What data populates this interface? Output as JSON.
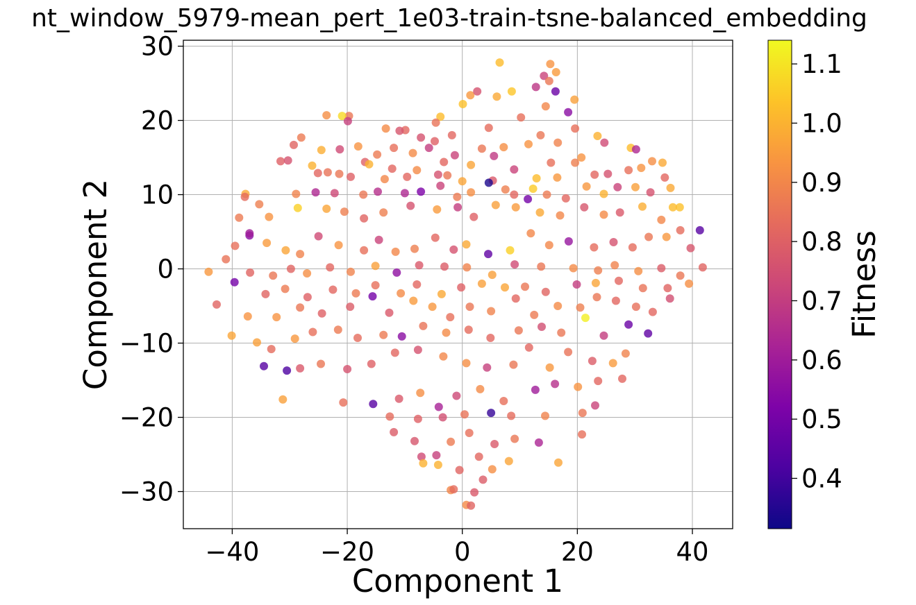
{
  "chart_data": {
    "type": "scatter",
    "title": "nt_window_5979-mean_pert_1e03-train-tsne-balanced_embedding",
    "xlabel": "Component 1",
    "ylabel": "Component 2",
    "xlim": [
      -48.5,
      47
    ],
    "ylim": [
      -35,
      30.8
    ],
    "xticks": [
      -40,
      -20,
      0,
      20,
      40
    ],
    "xtick_labels": [
      "−40",
      "−20",
      "0",
      "20",
      "40"
    ],
    "yticks": [
      -30,
      -20,
      -10,
      0,
      10,
      20,
      30
    ],
    "ytick_labels": [
      "−30",
      "−20",
      "−10",
      "0",
      "10",
      "20",
      "30"
    ],
    "grid": true,
    "colormap": "plasma",
    "marker_alpha": 0.8,
    "colorbar": {
      "label": "Fitness",
      "range": [
        0.315,
        1.14
      ],
      "ticks": [
        0.4,
        0.5,
        0.6,
        0.7,
        0.8,
        0.9,
        1.0,
        1.1
      ],
      "tick_labels": [
        "0.4",
        "0.5",
        "0.6",
        "0.7",
        "0.8",
        "0.9",
        "1.0",
        "1.1"
      ]
    },
    "points": [
      [
        6.5,
        27.8,
        1.02
      ],
      [
        15.3,
        27.6,
        0.93
      ],
      [
        16.3,
        26.5,
        0.95
      ],
      [
        14.2,
        26.0,
        0.72
      ],
      [
        12.8,
        24.5,
        0.68
      ],
      [
        16.2,
        23.9,
        0.48
      ],
      [
        1.4,
        23.4,
        0.94
      ],
      [
        2.6,
        23.9,
        0.76
      ],
      [
        6.0,
        23.2,
        0.98
      ],
      [
        8.6,
        23.9,
        1.04
      ],
      [
        15.1,
        25.3,
        0.86
      ],
      [
        19.5,
        22.8,
        0.96
      ],
      [
        -19.7,
        20.6,
        0.86
      ],
      [
        -20.9,
        20.6,
        1.08
      ],
      [
        -23.6,
        20.7,
        0.92
      ],
      [
        -19.9,
        19.9,
        0.71
      ],
      [
        -3.8,
        20.5,
        1.02
      ],
      [
        -4.6,
        19.7,
        0.85
      ],
      [
        -1.8,
        18.0,
        0.82
      ],
      [
        0.1,
        22.2,
        1.03
      ],
      [
        4.6,
        19.0,
        0.83
      ],
      [
        10.2,
        20.4,
        0.84
      ],
      [
        14.5,
        21.9,
        0.9
      ],
      [
        18.4,
        21.1,
        0.55
      ],
      [
        19.6,
        18.9,
        0.84
      ],
      [
        -13.3,
        18.9,
        0.91
      ],
      [
        -9.9,
        18.7,
        0.82
      ],
      [
        -7.2,
        17.7,
        0.76
      ],
      [
        -4.8,
        17.2,
        0.8
      ],
      [
        -28.0,
        17.7,
        0.87
      ],
      [
        -29.3,
        16.7,
        0.81
      ],
      [
        -24.5,
        16.0,
        0.99
      ],
      [
        -21.3,
        16.1,
        0.74
      ],
      [
        -18.1,
        16.5,
        0.93
      ],
      [
        -16.9,
        14.4,
        0.8
      ],
      [
        -14.8,
        15.4,
        0.87
      ],
      [
        -11.9,
        16.3,
        0.84
      ],
      [
        -10.9,
        18.6,
        0.77
      ],
      [
        -8.6,
        15.6,
        0.91
      ],
      [
        -5.8,
        16.3,
        0.7
      ],
      [
        -3.2,
        14.4,
        0.82
      ],
      [
        -1.3,
        15.3,
        0.72
      ],
      [
        1.5,
        14.0,
        0.97
      ],
      [
        3.4,
        16.2,
        0.86
      ],
      [
        5.5,
        15.2,
        0.69
      ],
      [
        7.2,
        16.4,
        0.92
      ],
      [
        11.5,
        16.8,
        0.93
      ],
      [
        13.6,
        18.0,
        0.86
      ],
      [
        16.6,
        17.0,
        0.89
      ],
      [
        20.7,
        15.0,
        0.93
      ],
      [
        23.5,
        17.9,
        1.0
      ],
      [
        24.7,
        17.0,
        0.74
      ],
      [
        29.3,
        16.3,
        1.02
      ],
      [
        30.2,
        16.1,
        0.64
      ],
      [
        -31.6,
        14.5,
        0.8
      ],
      [
        -30.3,
        14.6,
        0.76
      ],
      [
        -26.1,
        13.9,
        1.0
      ],
      [
        -25.1,
        12.9,
        0.82
      ],
      [
        -23.4,
        13.0,
        0.85
      ],
      [
        -21.4,
        12.8,
        0.86
      ],
      [
        -19.4,
        12.4,
        0.8
      ],
      [
        -16.2,
        14.1,
        1.0
      ],
      [
        -13.5,
        12.1,
        0.9
      ],
      [
        -12.2,
        13.5,
        0.82
      ],
      [
        -9.6,
        12.4,
        0.82
      ],
      [
        -7.9,
        13.3,
        0.91
      ],
      [
        -4.2,
        12.7,
        0.76
      ],
      [
        -2.6,
        12.6,
        0.86
      ],
      [
        0.0,
        11.8,
        0.97
      ],
      [
        5.3,
        11.9,
        0.78
      ],
      [
        9.0,
        13.4,
        0.72
      ],
      [
        12.9,
        12.2,
        1.02
      ],
      [
        15.4,
        14.3,
        0.84
      ],
      [
        16.5,
        12.3,
        0.94
      ],
      [
        19.6,
        14.3,
        0.88
      ],
      [
        23.0,
        12.7,
        0.82
      ],
      [
        25.3,
        12.8,
        0.76
      ],
      [
        28.9,
        13.3,
        0.84
      ],
      [
        31.1,
        13.6,
        0.93
      ],
      [
        33.0,
        14.5,
        0.92
      ],
      [
        34.8,
        14.3,
        0.98
      ],
      [
        35.2,
        12.3,
        0.82
      ],
      [
        -37.7,
        10.1,
        0.98
      ],
      [
        -35.3,
        8.7,
        0.88
      ],
      [
        -28.9,
        10.1,
        0.89
      ],
      [
        -25.5,
        10.3,
        0.64
      ],
      [
        -22.2,
        10.2,
        0.73
      ],
      [
        -17.2,
        10.0,
        0.86
      ],
      [
        -14.7,
        10.4,
        0.66
      ],
      [
        -10.0,
        10.2,
        0.64
      ],
      [
        -7.2,
        10.4,
        0.52
      ],
      [
        -3.8,
        11.2,
        0.72
      ],
      [
        -0.9,
        9.7,
        0.87
      ],
      [
        1.5,
        10.3,
        0.92
      ],
      [
        4.6,
        11.6,
        0.34
      ],
      [
        7.5,
        10.7,
        0.88
      ],
      [
        9.0,
        10.0,
        0.82
      ],
      [
        12.3,
        10.8,
        1.05
      ],
      [
        14.7,
        10.0,
        0.87
      ],
      [
        18.0,
        9.5,
        0.82
      ],
      [
        21.6,
        11.1,
        0.94
      ],
      [
        24.6,
        10.1,
        1.0
      ],
      [
        27.0,
        11.0,
        0.72
      ],
      [
        30.1,
        11.0,
        0.96
      ],
      [
        32.7,
        10.3,
        0.76
      ],
      [
        36.2,
        10.9,
        0.98
      ],
      [
        -38.8,
        6.9,
        0.87
      ],
      [
        -33.6,
        7.0,
        0.93
      ],
      [
        -28.6,
        8.2,
        1.06
      ],
      [
        -23.6,
        8.1,
        0.97
      ],
      [
        -20.5,
        7.7,
        0.88
      ],
      [
        -17.1,
        6.8,
        0.81
      ],
      [
        -13.7,
        7.6,
        0.88
      ],
      [
        -9.0,
        8.5,
        0.76
      ],
      [
        -4.4,
        8.0,
        0.95
      ],
      [
        -0.8,
        8.3,
        0.7
      ],
      [
        2.0,
        7.0,
        0.8
      ],
      [
        5.8,
        8.6,
        0.96
      ],
      [
        9.3,
        8.3,
        0.95
      ],
      [
        11.4,
        9.4,
        0.5
      ],
      [
        13.5,
        7.6,
        0.98
      ],
      [
        17.0,
        7.2,
        0.9
      ],
      [
        21.2,
        8.3,
        0.77
      ],
      [
        24.6,
        7.3,
        0.91
      ],
      [
        27.4,
        7.6,
        0.78
      ],
      [
        31.3,
        8.4,
        0.99
      ],
      [
        34.6,
        6.6,
        0.9
      ],
      [
        37.8,
        8.3,
        1.03
      ],
      [
        -37.0,
        4.5,
        0.55
      ],
      [
        -34.0,
        3.5,
        0.95
      ],
      [
        -30.7,
        2.5,
        0.97
      ],
      [
        -28.2,
        2.0,
        0.89
      ],
      [
        -25.0,
        4.4,
        0.74
      ],
      [
        -21.5,
        3.2,
        0.93
      ],
      [
        -17.1,
        2.5,
        0.84
      ],
      [
        -14.5,
        3.9,
        0.72
      ],
      [
        -11.6,
        2.3,
        0.9
      ],
      [
        -8.3,
        2.7,
        0.88
      ],
      [
        -4.7,
        4.2,
        0.82
      ],
      [
        -1.5,
        2.6,
        0.76
      ],
      [
        0.7,
        3.3,
        0.98
      ],
      [
        4.5,
        2.0,
        0.46
      ],
      [
        8.3,
        2.5,
        1.06
      ],
      [
        11.9,
        4.8,
        0.9
      ],
      [
        15.1,
        3.2,
        0.9
      ],
      [
        18.5,
        3.7,
        0.58
      ],
      [
        22.9,
        2.9,
        0.83
      ],
      [
        26.3,
        3.6,
        0.76
      ],
      [
        29.6,
        2.9,
        0.83
      ],
      [
        32.4,
        4.3,
        0.86
      ],
      [
        35.5,
        4.3,
        0.94
      ],
      [
        39.7,
        2.8,
        0.77
      ],
      [
        41.3,
        5.2,
        0.44
      ],
      [
        -41.1,
        1.3,
        0.85
      ],
      [
        -36.9,
        -0.5,
        0.81
      ],
      [
        -32.9,
        -0.9,
        0.86
      ],
      [
        -29.8,
        0.0,
        0.81
      ],
      [
        -27.0,
        -0.6,
        0.92
      ],
      [
        -23.0,
        0.2,
        0.82
      ],
      [
        -19.4,
        -0.4,
        0.89
      ],
      [
        -15.1,
        0.4,
        0.96
      ],
      [
        -11.4,
        -0.5,
        0.56
      ],
      [
        -7.5,
        0.5,
        0.78
      ],
      [
        -3.1,
        0.3,
        0.79
      ],
      [
        0.8,
        0.2,
        0.89
      ],
      [
        5.2,
        -0.8,
        0.96
      ],
      [
        9.1,
        0.6,
        0.74
      ],
      [
        13.7,
        0.3,
        0.86
      ],
      [
        19.3,
        0.1,
        0.91
      ],
      [
        23.6,
        -0.2,
        0.88
      ],
      [
        26.5,
        0.5,
        0.89
      ],
      [
        30.6,
        -0.3,
        0.92
      ],
      [
        34.6,
        0.1,
        0.79
      ],
      [
        37.9,
        -0.9,
        0.86
      ],
      [
        41.8,
        0.2,
        0.81
      ],
      [
        -44.1,
        -0.4,
        0.94
      ],
      [
        -39.6,
        -1.8,
        0.5
      ],
      [
        -34.2,
        -3.4,
        0.81
      ],
      [
        -30.8,
        -2.7,
        0.87
      ],
      [
        -26.9,
        -3.8,
        0.8
      ],
      [
        -22.5,
        -2.8,
        0.82
      ],
      [
        -18.5,
        -3.3,
        0.87
      ],
      [
        -15.1,
        -2.2,
        0.84
      ],
      [
        -10.7,
        -3.3,
        0.91
      ],
      [
        -7.9,
        -2.1,
        0.82
      ],
      [
        -3.6,
        -3.4,
        0.98
      ],
      [
        -0.2,
        -2.5,
        0.8
      ],
      [
        3.4,
        -2.0,
        0.96
      ],
      [
        7.4,
        -2.5,
        0.97
      ],
      [
        10.9,
        -2.4,
        0.86
      ],
      [
        14.5,
        -3.1,
        0.81
      ],
      [
        19.9,
        -2.1,
        0.7
      ],
      [
        23.2,
        -1.9,
        0.97
      ],
      [
        27.2,
        -1.6,
        0.82
      ],
      [
        31.4,
        -2.6,
        0.85
      ],
      [
        35.7,
        -2.6,
        0.81
      ],
      [
        39.4,
        -2.0,
        0.92
      ],
      [
        -42.7,
        -4.8,
        0.81
      ],
      [
        -37.3,
        -6.4,
        0.93
      ],
      [
        -32.3,
        -6.5,
        0.93
      ],
      [
        -28.2,
        -5.2,
        0.86
      ],
      [
        -24.4,
        -6.0,
        0.8
      ],
      [
        -19.5,
        -5.1,
        0.79
      ],
      [
        -15.6,
        -3.7,
        0.5
      ],
      [
        -12.7,
        -5.9,
        0.78
      ],
      [
        -8.5,
        -4.3,
        0.95
      ],
      [
        -5.2,
        -5.1,
        0.94
      ],
      [
        -2.1,
        -6.5,
        0.84
      ],
      [
        1.3,
        -5.1,
        0.86
      ],
      [
        5.0,
        -5.7,
        0.89
      ],
      [
        9.3,
        -4.0,
        0.82
      ],
      [
        12.5,
        -6.2,
        0.87
      ],
      [
        16.6,
        -5.0,
        0.91
      ],
      [
        20.5,
        -5.2,
        0.88
      ],
      [
        23.4,
        -3.8,
        0.86
      ],
      [
        26.7,
        -4.3,
        0.82
      ],
      [
        30.2,
        -5.1,
        0.84
      ],
      [
        33.1,
        -5.8,
        0.82
      ],
      [
        36.1,
        -4.0,
        0.75
      ],
      [
        -40.1,
        -9.0,
        0.97
      ],
      [
        -35.7,
        -9.9,
        0.96
      ],
      [
        -33.2,
        -10.8,
        0.83
      ],
      [
        -29.1,
        -9.4,
        0.94
      ],
      [
        -26.0,
        -8.5,
        0.84
      ],
      [
        -21.6,
        -8.2,
        0.87
      ],
      [
        -18.2,
        -9.3,
        0.83
      ],
      [
        -13.7,
        -8.9,
        0.87
      ],
      [
        -10.5,
        -9.1,
        0.55
      ],
      [
        -6.8,
        -7.7,
        0.85
      ],
      [
        -2.8,
        -8.6,
        0.91
      ],
      [
        1.1,
        -8.2,
        0.83
      ],
      [
        4.9,
        -9.3,
        0.82
      ],
      [
        9.8,
        -8.3,
        0.86
      ],
      [
        13.8,
        -7.8,
        0.75
      ],
      [
        17.2,
        -8.6,
        0.86
      ],
      [
        21.4,
        -6.6,
        1.12
      ],
      [
        24.6,
        -9.0,
        0.7
      ],
      [
        28.9,
        -7.5,
        0.48
      ],
      [
        32.3,
        -8.7,
        0.46
      ],
      [
        -34.5,
        -13.1,
        0.44
      ],
      [
        -30.5,
        -13.7,
        0.42
      ],
      [
        -28.2,
        -13.4,
        0.78
      ],
      [
        -24.6,
        -12.8,
        0.86
      ],
      [
        -20.0,
        -13.5,
        0.76
      ],
      [
        -15.8,
        -12.8,
        0.8
      ],
      [
        -11.7,
        -11.3,
        0.82
      ],
      [
        -7.7,
        -10.9,
        0.76
      ],
      [
        -3.3,
        -11.8,
        0.9
      ],
      [
        0.7,
        -12.7,
        0.92
      ],
      [
        4.3,
        -13.3,
        0.71
      ],
      [
        8.9,
        -12.9,
        0.86
      ],
      [
        11.6,
        -10.6,
        0.82
      ],
      [
        15.2,
        -13.3,
        0.94
      ],
      [
        18.4,
        -11.2,
        0.85
      ],
      [
        22.6,
        -12.4,
        0.79
      ],
      [
        26.2,
        -12.7,
        0.95
      ],
      [
        28.4,
        -11.4,
        0.89
      ],
      [
        -31.2,
        -17.6,
        0.96
      ],
      [
        -20.7,
        -18.0,
        0.84
      ],
      [
        -15.5,
        -18.2,
        0.44
      ],
      [
        -11.0,
        -17.5,
        0.78
      ],
      [
        -7.3,
        -16.7,
        0.92
      ],
      [
        -4.1,
        -18.6,
        0.62
      ],
      [
        -1.0,
        -17.1,
        0.73
      ],
      [
        3.1,
        -16.2,
        0.91
      ],
      [
        7.2,
        -17.8,
        0.84
      ],
      [
        12.7,
        -16.3,
        0.6
      ],
      [
        16.1,
        -15.5,
        0.66
      ],
      [
        20.1,
        -15.9,
        0.93
      ],
      [
        23.6,
        -15.1,
        0.82
      ],
      [
        27.8,
        -14.8,
        0.82
      ],
      [
        -12.6,
        -19.9,
        0.83
      ],
      [
        -7.7,
        -20.2,
        0.8
      ],
      [
        -3.4,
        -20.0,
        0.75
      ],
      [
        0.4,
        -19.6,
        0.85
      ],
      [
        5.0,
        -19.4,
        0.38
      ],
      [
        8.5,
        -19.8,
        0.83
      ],
      [
        14.4,
        -19.8,
        0.89
      ],
      [
        20.9,
        -19.4,
        0.86
      ],
      [
        23.1,
        -18.4,
        0.72
      ],
      [
        -11.9,
        -22.0,
        0.79
      ],
      [
        -8.3,
        -23.2,
        0.77
      ],
      [
        -2.0,
        -23.3,
        0.87
      ],
      [
        1.2,
        -22.1,
        0.84
      ],
      [
        5.6,
        -23.6,
        0.78
      ],
      [
        9.1,
        -22.9,
        0.86
      ],
      [
        13.3,
        -23.4,
        0.63
      ],
      [
        20.8,
        -22.3,
        0.84
      ],
      [
        -7.1,
        -25.3,
        0.74
      ],
      [
        -4.5,
        -25.1,
        0.71
      ],
      [
        2.9,
        -25.3,
        0.82
      ],
      [
        8.1,
        -25.9,
        0.97
      ],
      [
        16.7,
        -26.1,
        0.97
      ],
      [
        -6.8,
        -26.2,
        1.0
      ],
      [
        -4.2,
        -26.4,
        1.0
      ],
      [
        -0.5,
        -27.1,
        0.81
      ],
      [
        5.2,
        -27.0,
        0.92
      ],
      [
        -2.0,
        -29.8,
        0.9
      ],
      [
        3.6,
        -28.4,
        0.79
      ],
      [
        -1.5,
        -29.7,
        0.83
      ],
      [
        2.1,
        -30.1,
        0.78
      ],
      [
        0.7,
        -31.8,
        0.91
      ],
      [
        1.5,
        -31.9,
        0.81
      ],
      [
        -37.8,
        9.7,
        0.83
      ],
      [
        -37.0,
        4.8,
        0.6
      ],
      [
        -39.5,
        3.1,
        0.84
      ],
      [
        36.6,
        8.3,
        1.02
      ],
      [
        37.9,
        5.2,
        0.83
      ]
    ]
  }
}
